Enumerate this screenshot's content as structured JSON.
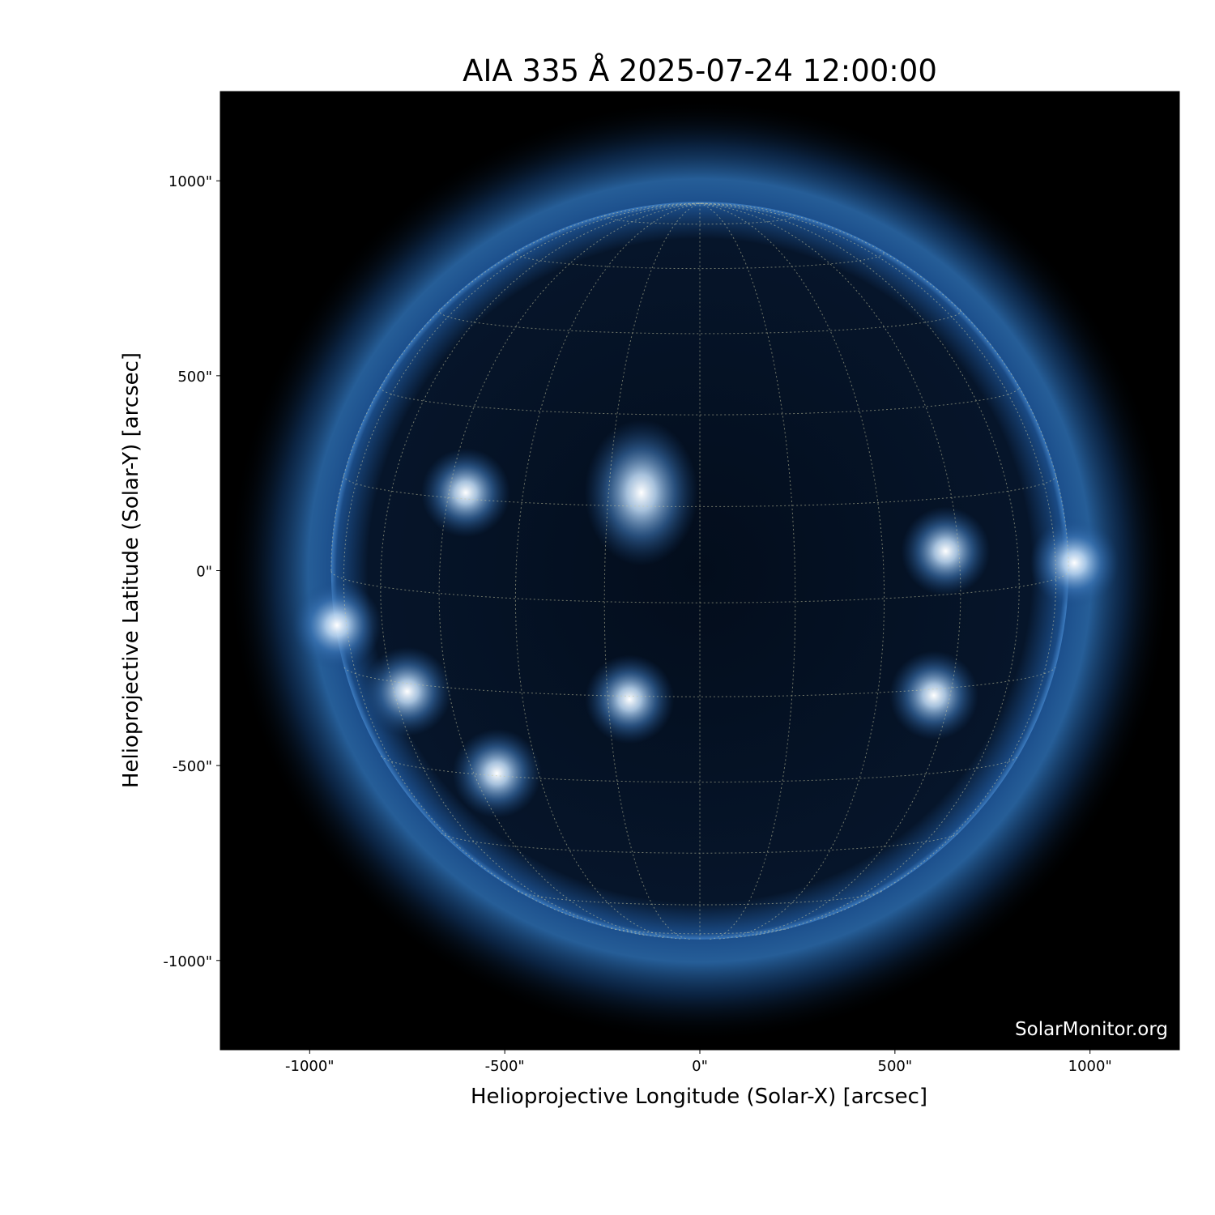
{
  "chart_data": {
    "type": "image",
    "title": "AIA 335 Å 2025-07-24 12:00:00",
    "xlabel": "Helioprojective Longitude (Solar-X) [arcsec]",
    "ylabel": "Helioprojective Latitude (Solar-Y) [arcsec]",
    "xlim": [
      -1229,
      1229
    ],
    "ylim": [
      -1229,
      1229
    ],
    "x_ticks": [
      -1000,
      -500,
      0,
      500,
      1000
    ],
    "x_tick_labels": [
      "-1000\"",
      "-500\"",
      "0\"",
      "500\"",
      "1000\""
    ],
    "y_ticks": [
      1000,
      500,
      0,
      -500,
      -1000
    ],
    "y_tick_labels": [
      "1000\"",
      "500\"",
      "0\"",
      "-500\"",
      "-1000\""
    ],
    "solar_radius_arcsec": 945,
    "grid": "heliographic lines, dotted",
    "colormap": "sdoaia335 (black to blue to white)",
    "background_color": "#000000",
    "watermark": "SolarMonitor.org",
    "bright_regions_arcsec": [
      {
        "x": -150,
        "y": 200
      },
      {
        "x": -930,
        "y": -140
      },
      {
        "x": -520,
        "y": -520
      },
      {
        "x": -180,
        "y": -330
      },
      {
        "x": -750,
        "y": -310
      },
      {
        "x": 630,
        "y": 50
      },
      {
        "x": 600,
        "y": -320
      },
      {
        "x": -600,
        "y": 200
      },
      {
        "x": 960,
        "y": 20
      }
    ]
  }
}
